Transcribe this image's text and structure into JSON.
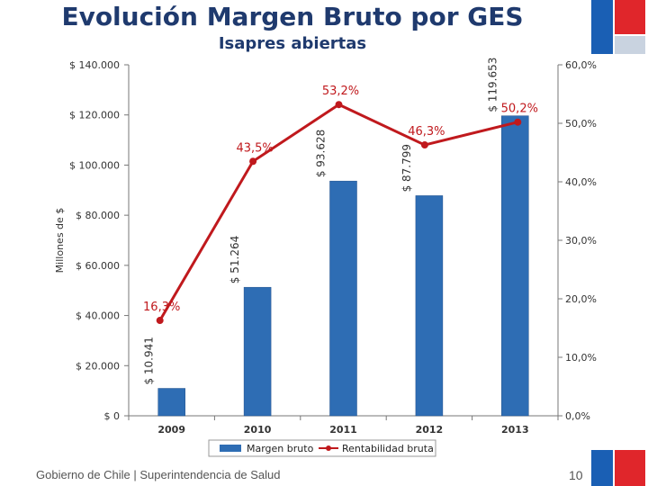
{
  "slide": {
    "title": "Evolución Margen Bruto por GES",
    "subtitle": "Isapres abiertas",
    "footer": "Gobierno de Chile | Superintendencia de Salud",
    "page_number": "10"
  },
  "colors": {
    "title": "#1f3a6e",
    "bar": "#2e6db4",
    "line": "#c0191d",
    "flag_blue": "#1a5fb4",
    "flag_red": "#e0262b"
  },
  "chart_data": {
    "type": "bar",
    "categories": [
      "2009",
      "2010",
      "2011",
      "2012",
      "2013"
    ],
    "ylabel": "Millones de $",
    "ylim": [
      0,
      140000
    ],
    "y2lim": [
      0,
      60
    ],
    "yticks": [
      "$ 0",
      "$ 20.000",
      "$ 40.000",
      "$ 60.000",
      "$ 80.000",
      "$ 100.000",
      "$ 120.000",
      "$ 140.000"
    ],
    "y2ticks": [
      "0,0%",
      "10,0%",
      "20,0%",
      "30,0%",
      "40,0%",
      "50,0%",
      "60,0%"
    ],
    "series": [
      {
        "name": "Margen bruto",
        "kind": "bar",
        "axis": "left",
        "values": [
          10941,
          51264,
          93628,
          87799,
          119653
        ],
        "labels": [
          "$ 10.941",
          "$ 51.264",
          "$ 93.628",
          "$ 87.799",
          "$ 119.653"
        ]
      },
      {
        "name": "Rentabilidad bruta",
        "kind": "line",
        "axis": "right",
        "values": [
          16.3,
          43.5,
          53.2,
          46.3,
          50.2
        ],
        "labels": [
          "16,3%",
          "43,5%",
          "53,2%",
          "46,3%",
          "50,2%"
        ]
      }
    ],
    "legend": "bottom",
    "grid": false
  }
}
